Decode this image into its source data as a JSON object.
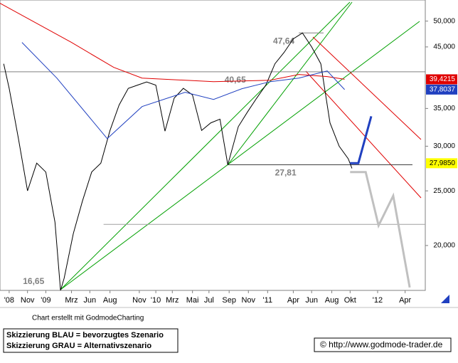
{
  "chart_data": {
    "type": "line",
    "log_scale": true,
    "xlim": [
      -5,
      41.4
    ],
    "ylim": [
      16650,
      54500
    ],
    "xticks": [
      {
        "value": -4,
        "label": "'08"
      },
      {
        "value": -2,
        "label": "Nov"
      },
      {
        "value": 0,
        "label": "'09"
      },
      {
        "value": 2.8,
        "label": "Mrz"
      },
      {
        "value": 4.8,
        "label": "Jun"
      },
      {
        "value": 7,
        "label": "Aug"
      },
      {
        "value": 10.2,
        "label": "Nov"
      },
      {
        "value": 12,
        "label": "'10"
      },
      {
        "value": 13.8,
        "label": "Mrz"
      },
      {
        "value": 16,
        "label": "Mai"
      },
      {
        "value": 17.8,
        "label": "Jul"
      },
      {
        "value": 20,
        "label": "Sep"
      },
      {
        "value": 22.1,
        "label": "Nov"
      },
      {
        "value": 24.2,
        "label": "'11"
      },
      {
        "value": 27,
        "label": "Apr"
      },
      {
        "value": 29,
        "label": "Jun"
      },
      {
        "value": 31.2,
        "label": "Aug"
      },
      {
        "value": 33.2,
        "label": "Okt"
      },
      {
        "value": 36.2,
        "label": "'12"
      },
      {
        "value": 39.2,
        "label": "Apr"
      }
    ],
    "yticks": [
      {
        "value": 50000,
        "label": "50,000"
      },
      {
        "value": 45000,
        "label": "45,000"
      },
      {
        "value": 35000,
        "label": "35,000"
      },
      {
        "value": 30000,
        "label": "30,000"
      },
      {
        "value": 25000,
        "label": "25,000"
      },
      {
        "value": 20000,
        "label": "20,000"
      }
    ],
    "series": [
      {
        "color": "#000000",
        "x": [
          -4.6,
          -4,
          -3,
          -2,
          -1,
          0,
          1,
          1.6,
          2,
          3,
          4,
          5,
          6,
          7,
          8,
          9,
          10,
          11,
          12,
          13,
          14,
          15,
          16,
          17,
          18,
          19,
          19.85,
          21,
          22,
          23,
          24,
          25,
          26,
          27,
          28,
          29,
          30,
          31,
          32,
          33,
          33.4
        ],
        "values": [
          42000,
          38000,
          31000,
          25000,
          28000,
          27000,
          22000,
          16650,
          17500,
          21000,
          24000,
          27000,
          28000,
          32000,
          35500,
          38000,
          38500,
          39000,
          38500,
          31900,
          36500,
          38000,
          37000,
          32000,
          33000,
          33500,
          27810,
          32500,
          34500,
          36500,
          38500,
          42000,
          44000,
          46500,
          47640,
          45000,
          42000,
          33000,
          30000,
          28500,
          27400
        ]
      },
      {
        "color": "#e00000",
        "x": [
          -5,
          2.8,
          7.4,
          10.5,
          18.3,
          24.5,
          27.6,
          30.7,
          32.6
        ],
        "values": [
          53770,
          45830,
          41400,
          39620,
          39050,
          39280,
          40210,
          39860,
          39421.5
        ]
      },
      {
        "color": "#2040c0",
        "x": [
          -2.6,
          1.2,
          6.7,
          10.5,
          15.2,
          18.3,
          21.4,
          24.5,
          27.6,
          30.7,
          32.6
        ],
        "values": [
          45830,
          39620,
          30940,
          35270,
          37380,
          36310,
          37940,
          39050,
          39620,
          40790,
          37803.7
        ]
      },
      {
        "color": "#2040c0",
        "width": 3,
        "x": [
          33.2,
          34.1,
          35.5
        ],
        "values": [
          28000,
          28000,
          33900
        ]
      },
      {
        "color": "#c0c0c0",
        "width": 3,
        "x": [
          33.2,
          34.9,
          36.3,
          37.9,
          39.7
        ],
        "values": [
          27000,
          27000,
          21700,
          24500,
          16850
        ]
      }
    ],
    "levels": [
      {
        "value": 40650,
        "label": "40,65",
        "from": -5,
        "to": 41.4,
        "color": "#808080",
        "label_x": 19.5
      },
      {
        "value": 27810,
        "label": "27,81",
        "from": 19.85,
        "to": 40,
        "color": "#404040",
        "label_x": 25
      },
      {
        "value": 47640,
        "label": "47,64",
        "from": 27.6,
        "to": 30.3,
        "color": "#808080",
        "label_x": 24.8
      },
      {
        "value": 21800,
        "from": 6.3,
        "to": 41.4,
        "color": "#a0a0a0"
      },
      {
        "value": 16650,
        "label": "16,65",
        "label_x": -2.5
      }
    ],
    "price_labels": [
      {
        "value": 39421.5,
        "label": "39,4215",
        "color": "#e00000"
      },
      {
        "value": 37803.7,
        "label": "37,8037",
        "color": "#2040c0"
      },
      {
        "value": 27985,
        "label": "27,9850",
        "color": "#ffff00"
      }
    ],
    "credit": "Chart erstellt mit GodmodeCharting",
    "legend_lines": [
      "Skizzierung BLAU = bevorzugtes Szenario",
      "Skizzierung GRAU = Alternativszenario"
    ],
    "copyright": "© http://www.godmode-trader.de"
  }
}
